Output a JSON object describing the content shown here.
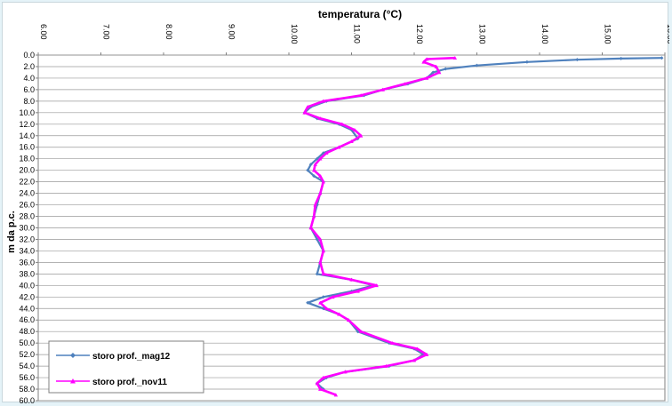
{
  "chart_data": {
    "type": "line",
    "title": "temperatura (°C)",
    "xlabel": "temperatura (°C)",
    "ylabel": "m da p.c.",
    "xlim": [
      6.0,
      16.0
    ],
    "ylim": [
      0.0,
      60.0
    ],
    "x_ticks": [
      "6.00",
      "7.00",
      "8.00",
      "9.00",
      "10.00",
      "11.00",
      "12.00",
      "13.00",
      "14.00",
      "15.00",
      "16.00"
    ],
    "y_ticks": [
      "0.0",
      "2.0",
      "4.0",
      "6.0",
      "8.0",
      "10.0",
      "12.0",
      "14.0",
      "16.0",
      "18.0",
      "20.0",
      "22.0",
      "24.0",
      "26.0",
      "28.0",
      "30.0",
      "32.0",
      "34.0",
      "36.0",
      "38.0",
      "40.0",
      "42.0",
      "44.0",
      "46.0",
      "48.0",
      "50.0",
      "52.0",
      "54.0",
      "56.0",
      "58.0",
      "60.0"
    ],
    "x_axis_position": "top",
    "y_axis_inverted": true,
    "grid": "horizontal",
    "legend_position": "bottom-left",
    "series": [
      {
        "name": "storo prof._mag12",
        "color": "#4f81bd",
        "marker": "diamond",
        "points": [
          {
            "depth": 0.5,
            "temp": 15.95
          },
          {
            "depth": 0.6,
            "temp": 15.3
          },
          {
            "depth": 0.8,
            "temp": 14.6
          },
          {
            "depth": 1.2,
            "temp": 13.8
          },
          {
            "depth": 1.8,
            "temp": 13.0
          },
          {
            "depth": 2.4,
            "temp": 12.5
          },
          {
            "depth": 3.0,
            "temp": 12.3
          },
          {
            "depth": 4.0,
            "temp": 12.2
          },
          {
            "depth": 5.0,
            "temp": 11.9
          },
          {
            "depth": 6.0,
            "temp": 11.5
          },
          {
            "depth": 7.0,
            "temp": 11.2
          },
          {
            "depth": 8.0,
            "temp": 10.6
          },
          {
            "depth": 9.0,
            "temp": 10.35
          },
          {
            "depth": 10.0,
            "temp": 10.25
          },
          {
            "depth": 11.0,
            "temp": 10.45
          },
          {
            "depth": 12.0,
            "temp": 10.8
          },
          {
            "depth": 13.0,
            "temp": 11.0
          },
          {
            "depth": 14.5,
            "temp": 11.1
          },
          {
            "depth": 16.0,
            "temp": 10.8
          },
          {
            "depth": 17.0,
            "temp": 10.55
          },
          {
            "depth": 18.0,
            "temp": 10.45
          },
          {
            "depth": 19.0,
            "temp": 10.35
          },
          {
            "depth": 20.0,
            "temp": 10.3
          },
          {
            "depth": 21.0,
            "temp": 10.4
          },
          {
            "depth": 22.0,
            "temp": 10.55
          },
          {
            "depth": 24.0,
            "temp": 10.5
          },
          {
            "depth": 26.0,
            "temp": 10.45
          },
          {
            "depth": 28.0,
            "temp": 10.4
          },
          {
            "depth": 30.0,
            "temp": 10.35
          },
          {
            "depth": 32.0,
            "temp": 10.45
          },
          {
            "depth": 34.0,
            "temp": 10.55
          },
          {
            "depth": 36.0,
            "temp": 10.5
          },
          {
            "depth": 38.0,
            "temp": 10.45
          },
          {
            "depth": 39.0,
            "temp": 11.0
          },
          {
            "depth": 40.0,
            "temp": 11.35
          },
          {
            "depth": 41.0,
            "temp": 11.0
          },
          {
            "depth": 42.0,
            "temp": 10.55
          },
          {
            "depth": 43.0,
            "temp": 10.3
          },
          {
            "depth": 44.0,
            "temp": 10.55
          },
          {
            "depth": 45.0,
            "temp": 10.8
          },
          {
            "depth": 46.0,
            "temp": 10.95
          },
          {
            "depth": 48.0,
            "temp": 11.1
          },
          {
            "depth": 50.0,
            "temp": 11.6
          },
          {
            "depth": 51.0,
            "temp": 12.0
          },
          {
            "depth": 52.0,
            "temp": 12.15
          },
          {
            "depth": 53.0,
            "temp": 12.0
          },
          {
            "depth": 54.0,
            "temp": 11.6
          },
          {
            "depth": 55.0,
            "temp": 10.9
          },
          {
            "depth": 56.0,
            "temp": 10.6
          },
          {
            "depth": 57.0,
            "temp": 10.45
          },
          {
            "depth": 58.0,
            "temp": 10.55
          }
        ]
      },
      {
        "name": "storo prof._nov11",
        "color": "#ff00ff",
        "marker": "triangle",
        "points": [
          {
            "depth": 0.5,
            "temp": 12.65
          },
          {
            "depth": 0.7,
            "temp": 12.2
          },
          {
            "depth": 1.2,
            "temp": 12.15
          },
          {
            "depth": 2.0,
            "temp": 12.35
          },
          {
            "depth": 3.0,
            "temp": 12.4
          },
          {
            "depth": 4.0,
            "temp": 12.2
          },
          {
            "depth": 5.0,
            "temp": 11.85
          },
          {
            "depth": 6.0,
            "temp": 11.5
          },
          {
            "depth": 7.0,
            "temp": 11.15
          },
          {
            "depth": 8.0,
            "temp": 10.55
          },
          {
            "depth": 9.0,
            "temp": 10.3
          },
          {
            "depth": 10.0,
            "temp": 10.25
          },
          {
            "depth": 11.0,
            "temp": 10.5
          },
          {
            "depth": 12.0,
            "temp": 10.85
          },
          {
            "depth": 13.0,
            "temp": 11.05
          },
          {
            "depth": 14.0,
            "temp": 11.15
          },
          {
            "depth": 15.0,
            "temp": 11.0
          },
          {
            "depth": 16.0,
            "temp": 10.8
          },
          {
            "depth": 17.0,
            "temp": 10.6
          },
          {
            "depth": 18.0,
            "temp": 10.5
          },
          {
            "depth": 19.0,
            "temp": 10.42
          },
          {
            "depth": 20.0,
            "temp": 10.4
          },
          {
            "depth": 21.0,
            "temp": 10.5
          },
          {
            "depth": 22.0,
            "temp": 10.55
          },
          {
            "depth": 24.0,
            "temp": 10.5
          },
          {
            "depth": 26.0,
            "temp": 10.42
          },
          {
            "depth": 28.0,
            "temp": 10.4
          },
          {
            "depth": 30.0,
            "temp": 10.35
          },
          {
            "depth": 32.0,
            "temp": 10.5
          },
          {
            "depth": 34.0,
            "temp": 10.55
          },
          {
            "depth": 36.0,
            "temp": 10.5
          },
          {
            "depth": 38.0,
            "temp": 10.55
          },
          {
            "depth": 39.0,
            "temp": 11.0
          },
          {
            "depth": 40.0,
            "temp": 11.4
          },
          {
            "depth": 41.0,
            "temp": 11.1
          },
          {
            "depth": 42.0,
            "temp": 10.7
          },
          {
            "depth": 43.0,
            "temp": 10.5
          },
          {
            "depth": 44.0,
            "temp": 10.6
          },
          {
            "depth": 45.0,
            "temp": 10.8
          },
          {
            "depth": 46.0,
            "temp": 10.95
          },
          {
            "depth": 48.0,
            "temp": 11.15
          },
          {
            "depth": 50.0,
            "temp": 11.65
          },
          {
            "depth": 51.0,
            "temp": 12.05
          },
          {
            "depth": 52.0,
            "temp": 12.2
          },
          {
            "depth": 53.0,
            "temp": 12.0
          },
          {
            "depth": 54.0,
            "temp": 11.55
          },
          {
            "depth": 55.0,
            "temp": 10.9
          },
          {
            "depth": 56.0,
            "temp": 10.55
          },
          {
            "depth": 57.0,
            "temp": 10.45
          },
          {
            "depth": 58.0,
            "temp": 10.5
          },
          {
            "depth": 59.0,
            "temp": 10.75
          }
        ]
      }
    ]
  }
}
